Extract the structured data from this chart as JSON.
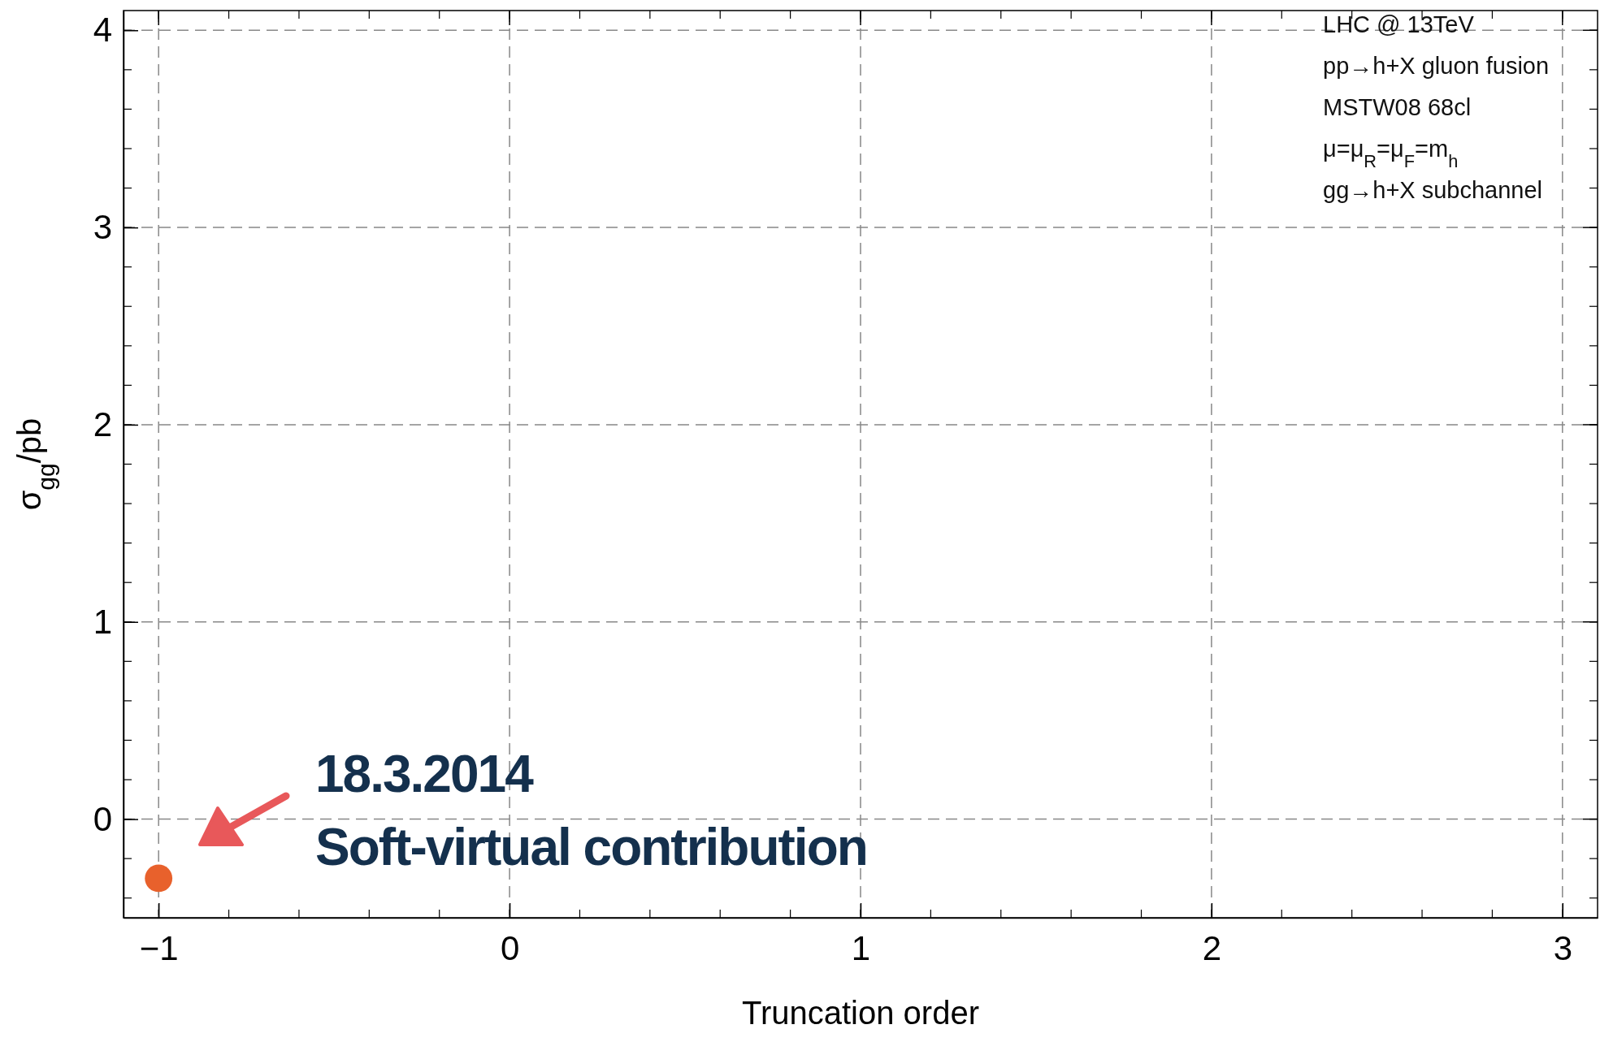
{
  "chart_data": {
    "type": "scatter",
    "xlabel": "Truncation order",
    "ylabel": "σ$_{gg}$/pb",
    "x": [
      -1
    ],
    "series": [
      {
        "color": "#e8612c",
        "values": [
          -0.3
        ]
      }
    ],
    "marker": "circle",
    "grid": true,
    "xlim": [
      -1.1,
      3.1
    ],
    "xticks": [
      -1,
      0,
      1,
      2,
      3
    ],
    "ylim": [
      -0.5,
      4.1
    ],
    "yticks": [
      0,
      1,
      2,
      3,
      4
    ],
    "annotations": [
      "LHC @ 13TeV",
      "pp→h+X gluon fusion",
      "MSTW08 68cl",
      "μ=μ$_{R}$=μ$_{F}$=m$_{h}$",
      "gg→h+X subchannel",
      "18.3.2014",
      "Soft-virtual contribution"
    ]
  }
}
